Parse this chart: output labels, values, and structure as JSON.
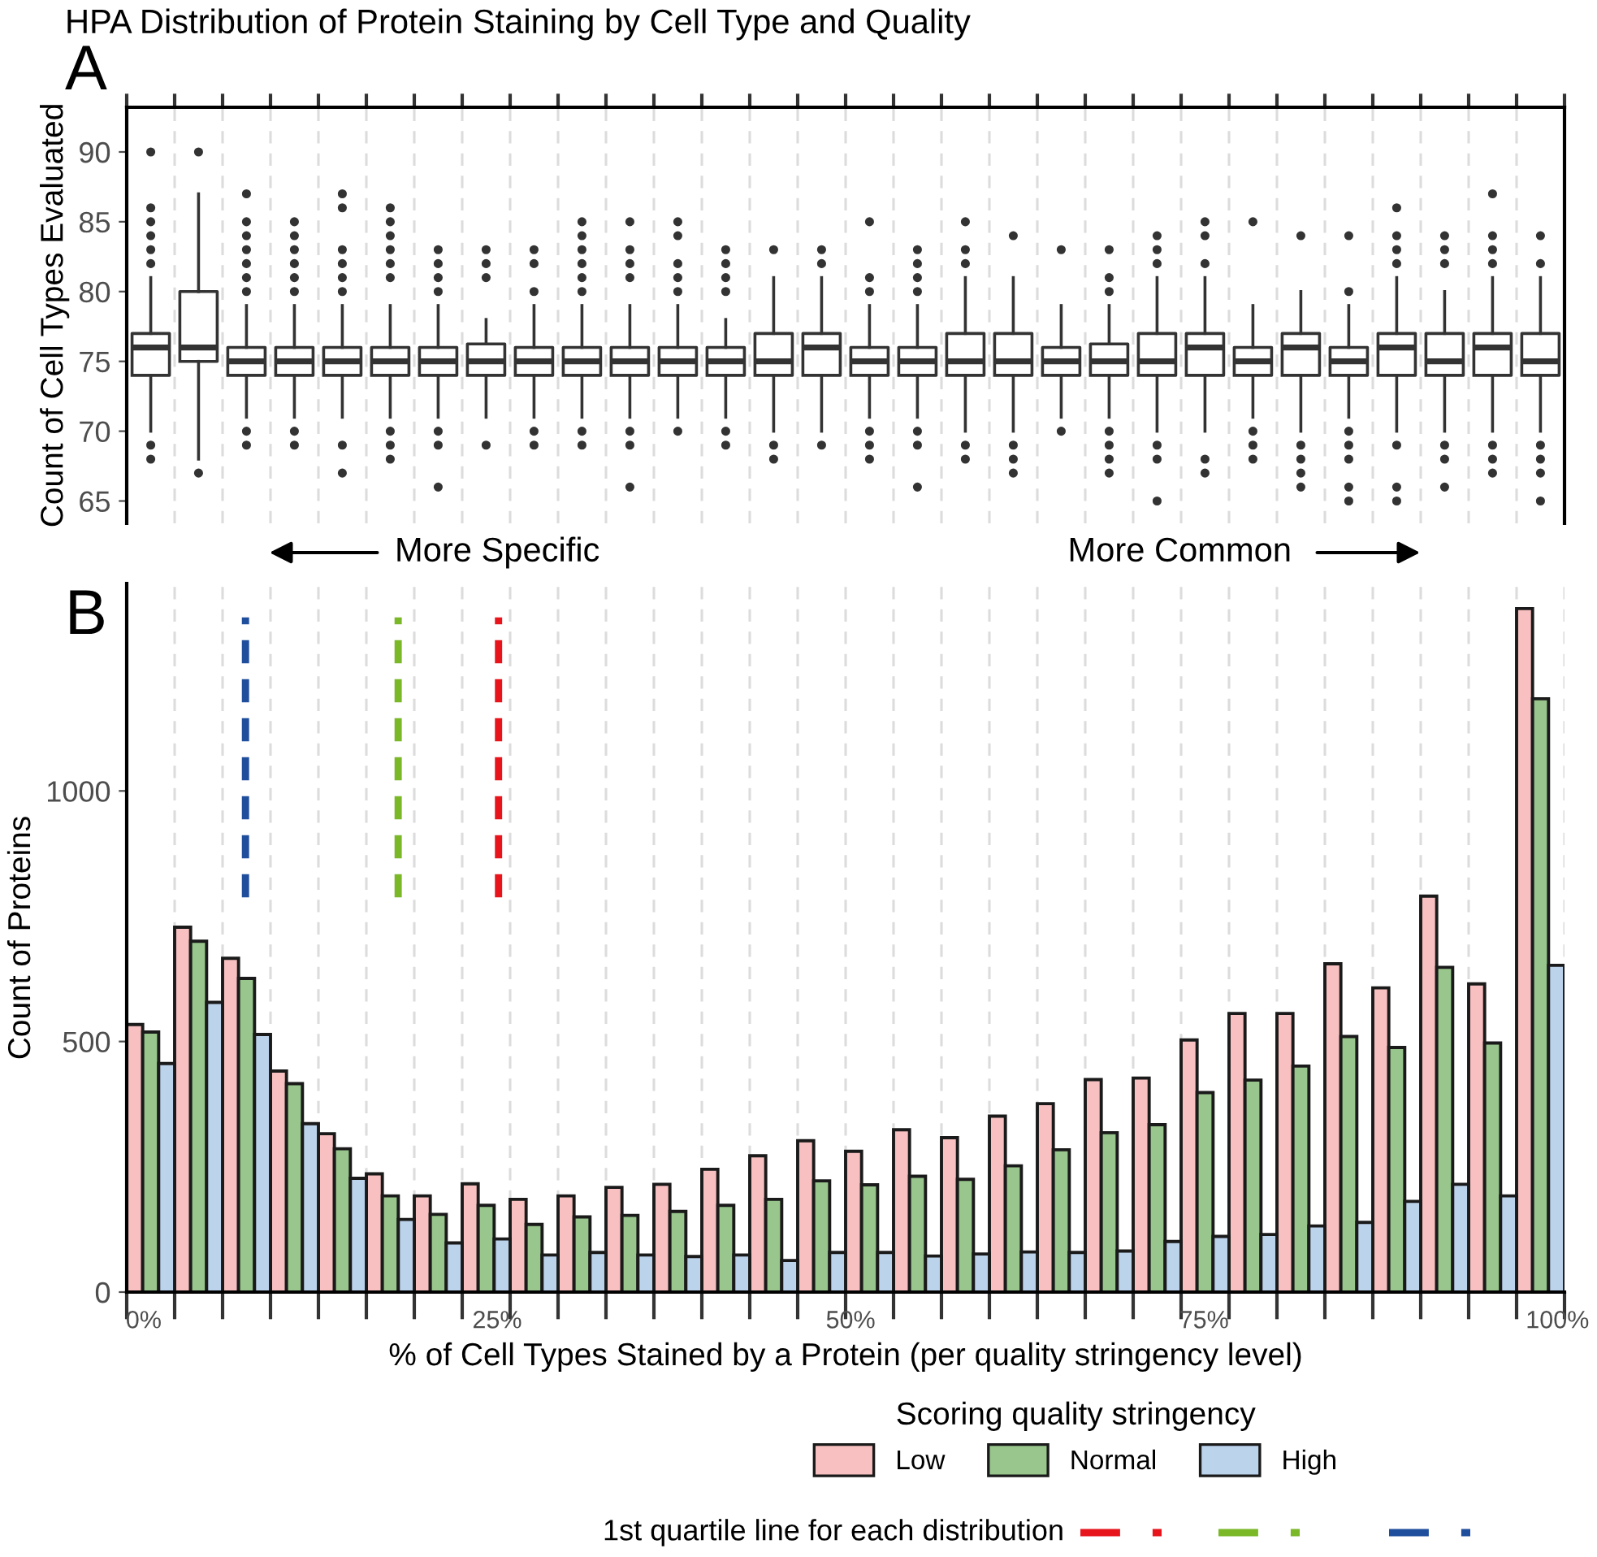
{
  "chart_data": [
    {
      "type": "box",
      "title": "HPA Distribution of Protein Staining by Cell Type and Quality",
      "ylabel": "Count of Cell Types Evaluated",
      "annotations": [
        "A",
        "More Specific",
        "More Common"
      ],
      "x": [
        0.5,
        3.88,
        7.27,
        10.66,
        14.05,
        17.44,
        20.83,
        24.22,
        27.61,
        31.0,
        34.39,
        37.78,
        41.17,
        44.56,
        47.95,
        51.34,
        54.73,
        58.12,
        61.51,
        64.9,
        68.29,
        71.68,
        75.07,
        78.46,
        81.85,
        85.24,
        88.63,
        92.02,
        95.41,
        98.8
      ],
      "boxes": [
        {
          "low": 70,
          "q1": 74,
          "median": 76,
          "q3": 77,
          "high": 81,
          "outliers": [
            90,
            86,
            85,
            84,
            83,
            82,
            69,
            68
          ]
        },
        {
          "low": 68,
          "q1": 75,
          "median": 76,
          "q3": 80,
          "high": 87,
          "outliers": [
            90,
            67
          ]
        },
        {
          "low": 71,
          "q1": 74,
          "median": 75,
          "q3": 76,
          "high": 79,
          "outliers": [
            87,
            85,
            84,
            83,
            82,
            81,
            80,
            70,
            69
          ]
        },
        {
          "low": 71,
          "q1": 74,
          "median": 75,
          "q3": 76,
          "high": 79,
          "outliers": [
            85,
            84,
            83,
            82,
            81,
            80,
            70,
            69
          ]
        },
        {
          "low": 71,
          "q1": 74,
          "median": 75,
          "q3": 76,
          "high": 79,
          "outliers": [
            87,
            86,
            83,
            82,
            81,
            80,
            69,
            67
          ]
        },
        {
          "low": 71,
          "q1": 74,
          "median": 75,
          "q3": 76,
          "high": 79,
          "outliers": [
            86,
            85,
            84,
            83,
            82,
            81,
            70,
            69,
            68
          ]
        },
        {
          "low": 71,
          "q1": 74,
          "median": 75,
          "q3": 76,
          "high": 79,
          "outliers": [
            83,
            82,
            81,
            80,
            70,
            69,
            66
          ]
        },
        {
          "low": 71,
          "q1": 74,
          "median": 75,
          "q3": 76.25,
          "high": 78,
          "outliers": [
            83,
            82,
            81,
            69
          ]
        },
        {
          "low": 71,
          "q1": 74,
          "median": 75,
          "q3": 76,
          "high": 79,
          "outliers": [
            83,
            82,
            80,
            70,
            69
          ]
        },
        {
          "low": 71,
          "q1": 74,
          "median": 75,
          "q3": 76,
          "high": 79,
          "outliers": [
            85,
            84,
            83,
            82,
            81,
            80,
            70,
            69
          ]
        },
        {
          "low": 71,
          "q1": 74,
          "median": 75,
          "q3": 76,
          "high": 79,
          "outliers": [
            85,
            83,
            82,
            81,
            70,
            69,
            66
          ]
        },
        {
          "low": 71,
          "q1": 74,
          "median": 75,
          "q3": 76,
          "high": 79,
          "outliers": [
            85,
            84,
            82,
            81,
            80,
            70
          ]
        },
        {
          "low": 71,
          "q1": 74,
          "median": 75,
          "q3": 76,
          "high": 78,
          "outliers": [
            83,
            82,
            81,
            80,
            70,
            69
          ]
        },
        {
          "low": 70,
          "q1": 74,
          "median": 75,
          "q3": 77,
          "high": 81,
          "outliers": [
            83,
            69,
            68
          ]
        },
        {
          "low": 70,
          "q1": 74,
          "median": 76,
          "q3": 77,
          "high": 81,
          "outliers": [
            83,
            82,
            69
          ]
        },
        {
          "low": 71,
          "q1": 74,
          "median": 75,
          "q3": 76,
          "high": 79,
          "outliers": [
            85,
            81,
            80,
            70,
            69,
            68
          ]
        },
        {
          "low": 71,
          "q1": 74,
          "median": 75,
          "q3": 76,
          "high": 79,
          "outliers": [
            83,
            82,
            81,
            80,
            70,
            69,
            66
          ]
        },
        {
          "low": 70,
          "q1": 74,
          "median": 75,
          "q3": 77,
          "high": 81,
          "outliers": [
            85,
            83,
            82,
            69,
            68
          ]
        },
        {
          "low": 70,
          "q1": 74,
          "median": 75,
          "q3": 77,
          "high": 81,
          "outliers": [
            84,
            69,
            68,
            67
          ]
        },
        {
          "low": 71,
          "q1": 74,
          "median": 75,
          "q3": 76,
          "high": 79,
          "outliers": [
            83,
            70
          ]
        },
        {
          "low": 71,
          "q1": 74,
          "median": 75,
          "q3": 76.25,
          "high": 79,
          "outliers": [
            83,
            81,
            80,
            70,
            69,
            68,
            67
          ]
        },
        {
          "low": 70,
          "q1": 74,
          "median": 75,
          "q3": 77,
          "high": 81,
          "outliers": [
            84,
            83,
            82,
            69,
            68,
            65
          ]
        },
        {
          "low": 70,
          "q1": 74,
          "median": 76,
          "q3": 77,
          "high": 81,
          "outliers": [
            85,
            84,
            82,
            68,
            67
          ]
        },
        {
          "low": 71,
          "q1": 74,
          "median": 75,
          "q3": 76,
          "high": 79,
          "outliers": [
            85,
            70,
            69,
            68
          ]
        },
        {
          "low": 70,
          "q1": 74,
          "median": 76,
          "q3": 77,
          "high": 80,
          "outliers": [
            84,
            69,
            68,
            67,
            66
          ]
        },
        {
          "low": 71,
          "q1": 74,
          "median": 75,
          "q3": 76,
          "high": 79,
          "outliers": [
            84,
            80,
            70,
            69,
            68,
            66,
            65
          ]
        },
        {
          "low": 70,
          "q1": 74,
          "median": 76,
          "q3": 77,
          "high": 81,
          "outliers": [
            86,
            84,
            83,
            82,
            69,
            66,
            65
          ]
        },
        {
          "low": 70,
          "q1": 74,
          "median": 75,
          "q3": 77,
          "high": 80,
          "outliers": [
            84,
            83,
            82,
            69,
            68,
            66
          ]
        },
        {
          "low": 70,
          "q1": 74,
          "median": 76,
          "q3": 77,
          "high": 81,
          "outliers": [
            87,
            84,
            83,
            82,
            69,
            68,
            67
          ]
        },
        {
          "low": 70,
          "q1": 74,
          "median": 75,
          "q3": 77,
          "high": 81,
          "outliers": [
            84,
            82,
            69,
            68,
            67,
            65
          ]
        }
      ],
      "xlim": [
        -1.2,
        100.5
      ],
      "xticks": [
        {
          "value": -1.2,
          "label": null
        },
        {
          "value": 2.19,
          "label": null
        },
        {
          "value": 5.58,
          "label": null
        },
        {
          "value": 8.97,
          "label": null
        },
        {
          "value": 12.36,
          "label": null
        },
        {
          "value": 15.75,
          "label": null
        },
        {
          "value": 19.14,
          "label": null
        },
        {
          "value": 22.53,
          "label": null
        },
        {
          "value": 25.92,
          "label": null
        },
        {
          "value": 29.31,
          "label": null
        },
        {
          "value": 32.7,
          "label": null
        },
        {
          "value": 36.09,
          "label": null
        },
        {
          "value": 39.48,
          "label": null
        },
        {
          "value": 42.87,
          "label": null
        },
        {
          "value": 46.26,
          "label": null
        },
        {
          "value": 49.65,
          "label": null
        },
        {
          "value": 53.04,
          "label": null
        },
        {
          "value": 56.43,
          "label": null
        },
        {
          "value": 59.82,
          "label": null
        },
        {
          "value": 63.21,
          "label": null
        },
        {
          "value": 66.6,
          "label": null
        },
        {
          "value": 69.99,
          "label": null
        },
        {
          "value": 73.38,
          "label": null
        },
        {
          "value": 76.77,
          "label": null
        },
        {
          "value": 80.16,
          "label": null
        },
        {
          "value": 83.55,
          "label": null
        },
        {
          "value": 86.94,
          "label": null
        },
        {
          "value": 90.33,
          "label": null
        },
        {
          "value": 93.72,
          "label": null
        },
        {
          "value": 97.11,
          "label": null
        },
        {
          "value": 100.5,
          "label": null
        }
      ],
      "ylim": [
        63.4,
        93.2
      ],
      "yticks": [
        65,
        70,
        75,
        80,
        85,
        90
      ],
      "grid": "x",
      "tick_labels": "y"
    },
    {
      "type": "histogram",
      "xlabel": "% of Cell Types Stained by a Protein (per quality stringency level)",
      "ylabel": "Count of Proteins",
      "legend_title": "Scoring quality stringency",
      "legend": "bottom",
      "annotations": [
        "B",
        "1st quartile line for each distribution"
      ],
      "bins": [
        -1.2,
        2.19,
        5.58,
        8.97,
        12.36,
        15.75,
        19.14,
        22.53,
        25.92,
        29.31,
        32.7,
        36.09,
        39.48,
        42.87,
        46.26,
        49.65,
        53.04,
        56.43,
        59.82,
        63.21,
        66.6,
        69.99,
        73.38,
        76.77,
        80.16,
        83.55,
        86.94,
        90.33,
        93.72,
        97.11,
        100.5
      ],
      "series": [
        {
          "name": "Low",
          "color": "#f8c0c0",
          "values": [
            534,
            728,
            666,
            441,
            316,
            236,
            192,
            216,
            185,
            192,
            209,
            215,
            245,
            272,
            302,
            281,
            324,
            308,
            351,
            376,
            424,
            427,
            503,
            556,
            556,
            655,
            607,
            790,
            615,
            1364
          ]
        },
        {
          "name": "Normal",
          "color": "#98c68c",
          "values": [
            519,
            700,
            626,
            416,
            286,
            192,
            155,
            173,
            135,
            150,
            153,
            161,
            173,
            185,
            222,
            214,
            231,
            225,
            252,
            284,
            318,
            334,
            398,
            423,
            451,
            510,
            488,
            648,
            497,
            1184
          ]
        },
        {
          "name": "High",
          "color": "#bcd3ec",
          "values": [
            456,
            578,
            514,
            336,
            227,
            145,
            98,
            106,
            74,
            79,
            74,
            71,
            74,
            63,
            79,
            79,
            72,
            76,
            80,
            79,
            82,
            101,
            111,
            115,
            132,
            139,
            181,
            215,
            192,
            652
          ]
        }
      ],
      "ref_lines": [
        {
          "axis": "x",
          "value": 25.1,
          "color": "#e8141c",
          "line_style": "dashed"
        },
        {
          "axis": "x",
          "value": 18.0,
          "color": "#7ab828",
          "line_style": "dashed"
        },
        {
          "axis": "x",
          "value": 7.2,
          "color": "#1f4e9c",
          "line_style": "dashed"
        }
      ],
      "xlim": [
        -1.2,
        100.5
      ],
      "xticks": [
        {
          "value": -1.2,
          "label": null
        },
        {
          "value": 2.19,
          "label": null
        },
        {
          "value": 5.58,
          "label": null
        },
        {
          "value": 8.97,
          "label": null
        },
        {
          "value": 12.36,
          "label": null
        },
        {
          "value": 15.75,
          "label": null
        },
        {
          "value": 19.14,
          "label": null
        },
        {
          "value": 22.53,
          "label": null
        },
        {
          "value": 25.92,
          "label": null
        },
        {
          "value": 29.31,
          "label": null
        },
        {
          "value": 32.7,
          "label": null
        },
        {
          "value": 36.09,
          "label": null
        },
        {
          "value": 39.48,
          "label": null
        },
        {
          "value": 42.87,
          "label": null
        },
        {
          "value": 46.26,
          "label": null
        },
        {
          "value": 49.65,
          "label": null
        },
        {
          "value": 53.04,
          "label": null
        },
        {
          "value": 56.43,
          "label": null
        },
        {
          "value": 59.82,
          "label": null
        },
        {
          "value": 63.21,
          "label": null
        },
        {
          "value": 66.6,
          "label": null
        },
        {
          "value": 69.99,
          "label": null
        },
        {
          "value": 73.38,
          "label": null
        },
        {
          "value": 76.77,
          "label": null
        },
        {
          "value": 80.16,
          "label": null
        },
        {
          "value": 83.55,
          "label": null
        },
        {
          "value": 86.94,
          "label": null
        },
        {
          "value": 90.33,
          "label": null
        },
        {
          "value": 93.72,
          "label": null
        },
        {
          "value": 97.11,
          "label": null
        },
        {
          "value": 100.5,
          "label": null
        },
        {
          "value": 0,
          "label": "0%"
        },
        {
          "value": 25,
          "label": "25%"
        },
        {
          "value": 50,
          "label": "50%"
        },
        {
          "value": 75,
          "label": "75%"
        },
        {
          "value": 100,
          "label": "100%"
        }
      ],
      "ylim": [
        0,
        1414
      ],
      "yticks": [
        0,
        500,
        1000
      ],
      "grid": "x"
    }
  ]
}
